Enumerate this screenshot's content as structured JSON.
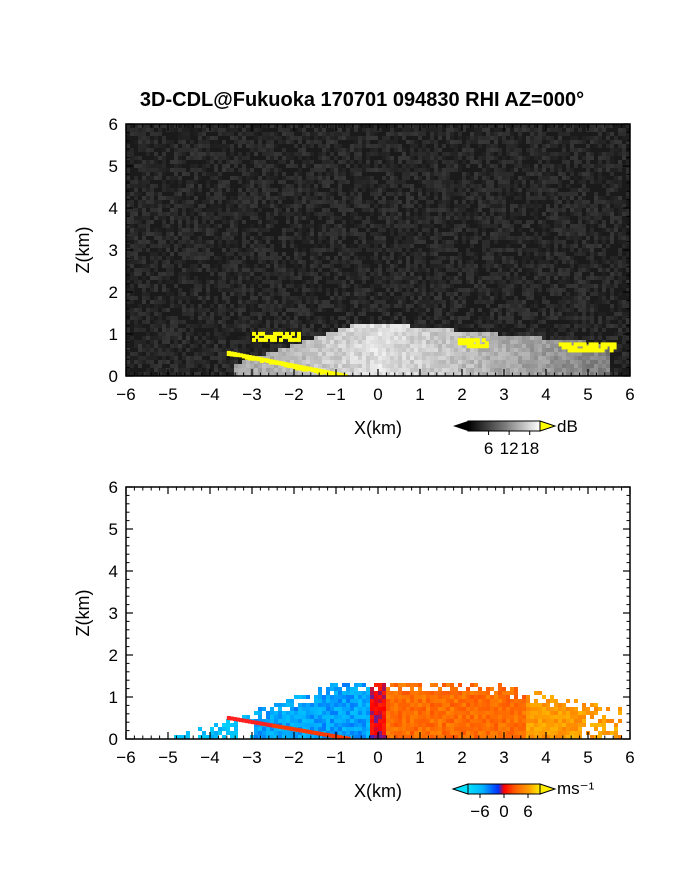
{
  "chart_data": [
    {
      "type": "heatmap",
      "title": "3D-CDL@Fukuoka 170701 094830 RHI AZ=000°",
      "xlabel": "X(km)",
      "ylabel": "Z(km)",
      "xlim": [
        -6,
        6
      ],
      "ylim": [
        0,
        6
      ],
      "x_ticks": [
        "-6",
        "-5",
        "-4",
        "-3",
        "-2",
        "-1",
        "0",
        "1",
        "2",
        "3",
        "4",
        "5",
        "6"
      ],
      "y_ticks": [
        "0",
        "1",
        "2",
        "3",
        "4",
        "5",
        "6"
      ],
      "colorbar": {
        "unit": "dB",
        "ticks": [
          "6",
          "12",
          "18"
        ],
        "range": [
          0,
          21
        ],
        "over_color": "#ffff00",
        "palette": "grayscale"
      },
      "field_extent_km": {
        "x_from": -3.5,
        "x_to": 5.5,
        "top_near_center": 1.3,
        "top_far_east": 0.8
      },
      "high_value_regions": [
        {
          "label": "yellow streak",
          "x": [
            -3.6,
            -0.8
          ],
          "z": [
            0.0,
            0.55
          ]
        },
        {
          "label": "yellow patch",
          "x": [
            -3.0,
            -1.9
          ],
          "z": [
            0.9,
            1.05
          ]
        },
        {
          "label": "yellow patch",
          "x": [
            1.9,
            2.6
          ],
          "z": [
            0.75,
            0.9
          ]
        },
        {
          "label": "yellow patch",
          "x": [
            4.3,
            5.6
          ],
          "z": [
            0.6,
            0.8
          ]
        }
      ]
    },
    {
      "type": "heatmap",
      "xlabel": "X(km)",
      "ylabel": "Z(km)",
      "xlim": [
        -6,
        6
      ],
      "ylim": [
        0,
        6
      ],
      "x_ticks": [
        "-6",
        "-5",
        "-4",
        "-3",
        "-2",
        "-1",
        "0",
        "1",
        "2",
        "3",
        "4",
        "5",
        "6"
      ],
      "y_ticks": [
        "0",
        "1",
        "2",
        "3",
        "4",
        "5",
        "6"
      ],
      "colorbar": {
        "unit": "ms⁻¹",
        "ticks": [
          "−6",
          "0",
          "6"
        ],
        "range": [
          -9,
          9
        ],
        "palette": "cyan-blue-red-orange-yellow"
      },
      "field_extent_km": {
        "x_from": -5.0,
        "x_to": 5.8,
        "top": 1.4
      },
      "velocity_structure": [
        {
          "region": "x < 0",
          "sign": "negative (approaching)",
          "typical_ms": -4
        },
        {
          "region": "x > 0",
          "sign": "positive (receding)",
          "typical_ms": 4
        },
        {
          "region": "x 3.5..5.8, low levels",
          "sign": "positive",
          "typical_ms": 7
        }
      ]
    }
  ]
}
